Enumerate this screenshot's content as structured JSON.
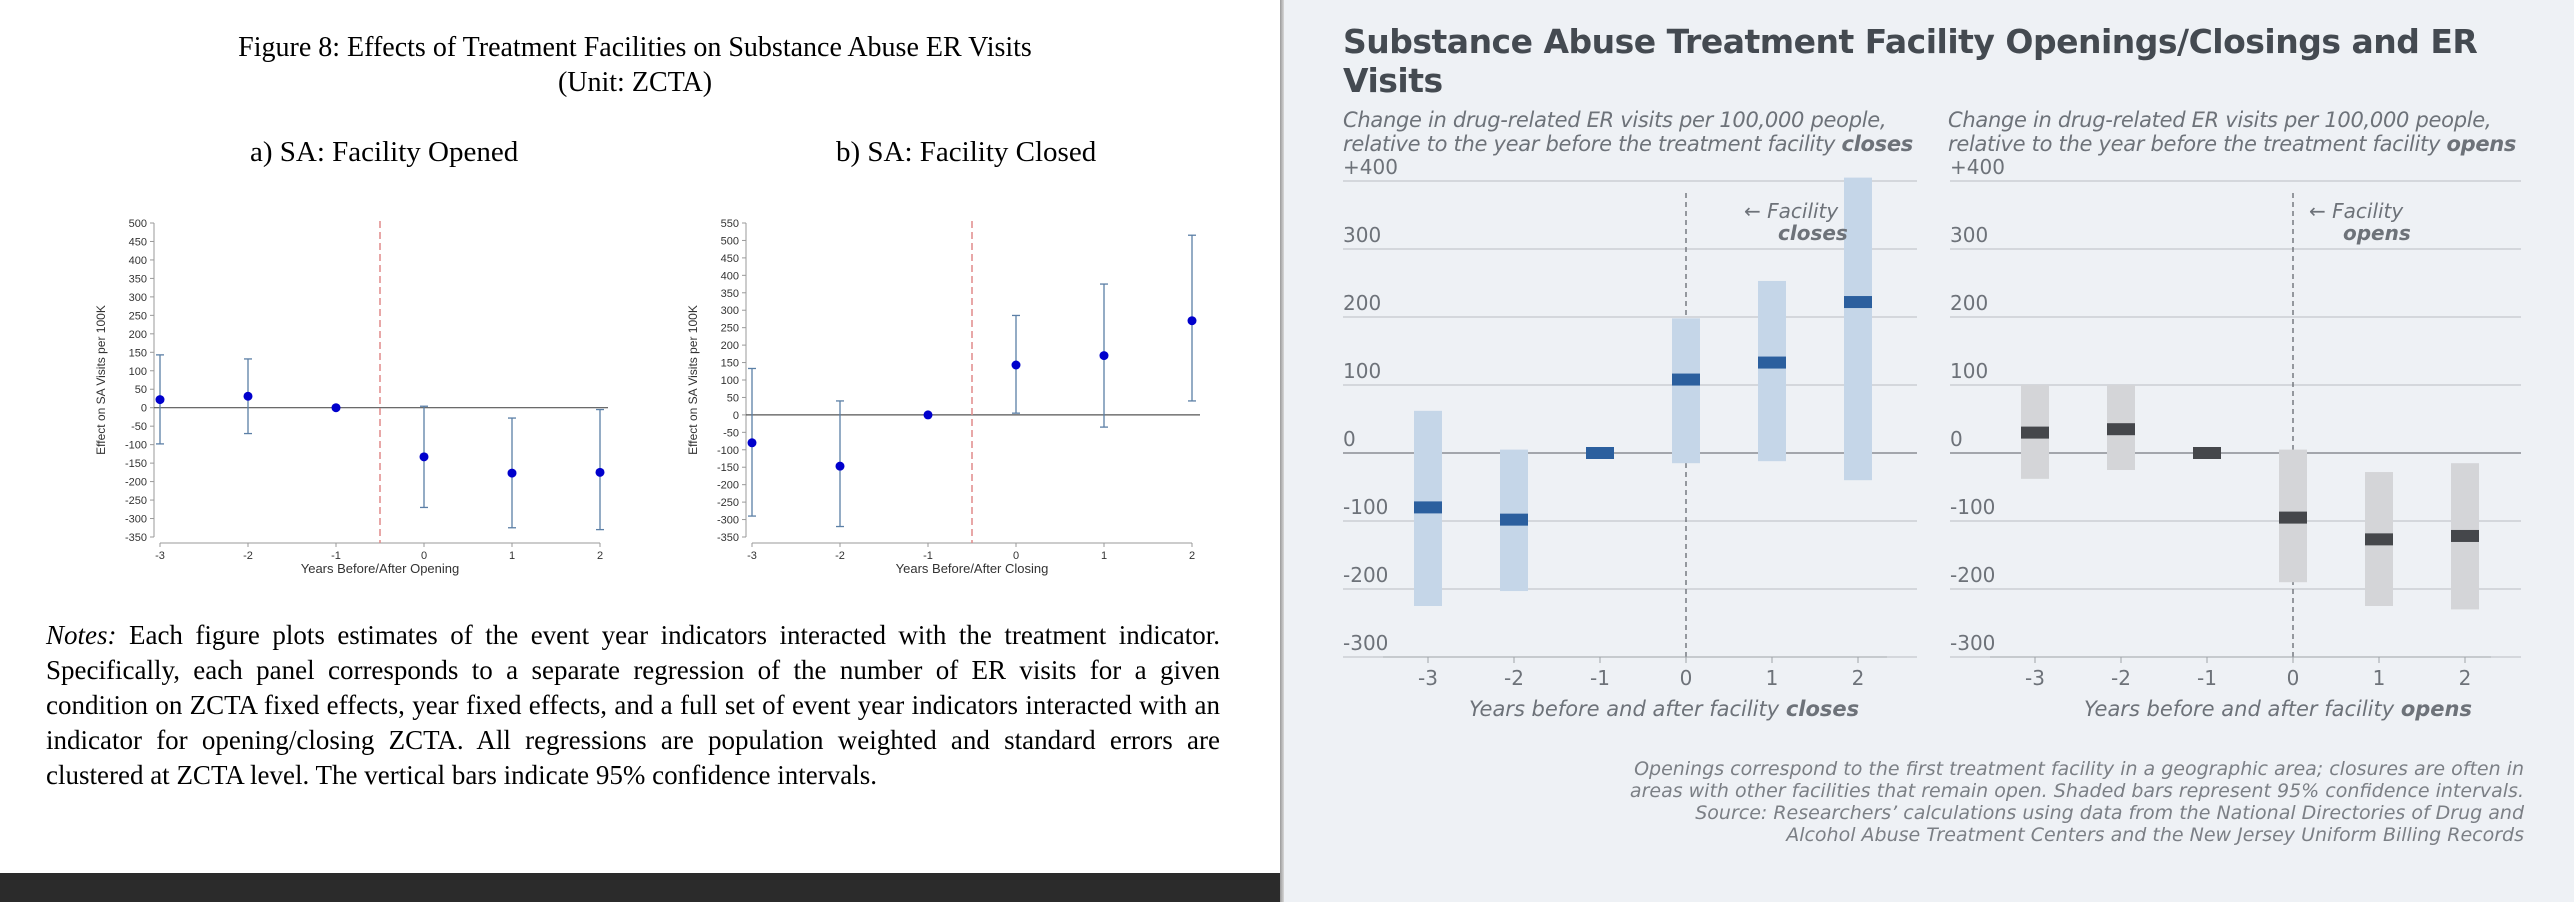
{
  "left": {
    "figure_title": "Figure 8: Effects of Treatment Facilities on Substance Abuse ER Visits",
    "figure_unit": "(Unit: ZCTA)",
    "notes_label": "Notes:",
    "notes_text": " Each figure plots estimates of the event year indicators interacted with the treatment indicator. Specifically, each panel corresponds to a separate regression of the number of ER visits for a given condition on ZCTA fixed effects, year fixed effects, and a full set of event year indicators interacted with an indicator for opening/closing ZCTA. All regressions are population weighted and standard errors are clustered at ZCTA level.  The vertical bars indicate 95% confidence intervals."
  },
  "right": {
    "title": "Substance Abuse Treatment Facility Openings/Closings and ER Visits",
    "sub_prefix": "Change in drug-related ER visits per 100,000 people, relative to the year before the treatment facility ",
    "sub_closes": "closes",
    "sub_opens": "opens",
    "ann_facility": "Facility",
    "ann_closes": "closes",
    "ann_opens": "opens",
    "arrow": "←",
    "xlabel_prefix": "Years before and after facility ",
    "xlabel_closes": "closes",
    "xlabel_opens": "opens",
    "footnote_1": "Openings correspond to the first treatment facility in a geographic area; closures are often in",
    "footnote_2": "areas with other facilities that remain open. Shaded bars represent 95% confidence intervals.",
    "footnote_3": "Source: Researchers’ calculations using data from the National Directories of Drug and",
    "footnote_4": "Alcohol Abuse Treatment Centers and the New Jersey Uniform Billing Records"
  },
  "chart_data": [
    {
      "type": "scatter",
      "title": "a)   SA: Facility Opened",
      "xlabel": "Years Before/After Opening",
      "ylabel": "Effect on SA Visits per 100K",
      "x": [
        -3,
        -2,
        -1,
        0,
        1,
        2
      ],
      "y": [
        22,
        31,
        0,
        -133,
        -177,
        -175
      ],
      "ci_low": [
        -98,
        -70,
        0,
        -270,
        -325,
        -330
      ],
      "ci_high": [
        143,
        132,
        0,
        4,
        -28,
        -5
      ],
      "x_ticks": [
        "-3",
        "-2",
        "-1",
        "0",
        "1",
        "2"
      ],
      "y_ticks": [
        500,
        450,
        400,
        350,
        300,
        250,
        200,
        150,
        100,
        50,
        0,
        -50,
        -100,
        -150,
        -200,
        -250,
        -300,
        -350
      ],
      "ylim": [
        -350,
        500
      ],
      "event_line_x": -0.5,
      "colors": {
        "point": "#0000cc",
        "whisker": "#5b7fa6",
        "event_line": "#e08a8a"
      }
    },
    {
      "type": "scatter",
      "title": "b) SA: Facility Closed",
      "xlabel": "Years Before/After Closing",
      "ylabel": "Effect on SA Visits per 100K",
      "x": [
        -3,
        -2,
        -1,
        0,
        1,
        2
      ],
      "y": [
        -80,
        -147,
        0,
        143,
        170,
        270
      ],
      "ci_low": [
        -290,
        -320,
        0,
        5,
        -35,
        40
      ],
      "ci_high": [
        133,
        40,
        0,
        285,
        375,
        515
      ],
      "x_ticks": [
        "-3",
        "-2",
        "-1",
        "0",
        "1",
        "2"
      ],
      "y_ticks": [
        550,
        500,
        450,
        400,
        350,
        300,
        250,
        200,
        150,
        100,
        50,
        0,
        -50,
        -100,
        -150,
        -200,
        -250,
        -300,
        -350
      ],
      "ylim": [
        -350,
        550
      ],
      "event_line_x": -0.5,
      "colors": {
        "point": "#0000cc",
        "whisker": "#5b7fa6",
        "event_line": "#e08a8a"
      }
    },
    {
      "type": "bar",
      "title": "",
      "x": [
        -3,
        -2,
        -1,
        0,
        1,
        2
      ],
      "y": [
        -80,
        -98,
        0,
        108,
        133,
        222
      ],
      "ci_low": [
        -225,
        -203,
        0,
        -15,
        -12,
        -40
      ],
      "ci_high": [
        62,
        5,
        0,
        198,
        253,
        405
      ],
      "x_ticks": [
        "-3",
        "-2",
        "-1",
        "0",
        "1",
        "2"
      ],
      "y_ticks": [
        "+400",
        "300",
        "200",
        "100",
        "0",
        "-100",
        "-200",
        "-300"
      ],
      "ylim": [
        -300,
        400
      ],
      "event_line_x": 0,
      "colors": {
        "estimate": "#2b5f9e",
        "interval": "#c5d6e8"
      }
    },
    {
      "type": "bar",
      "title": "",
      "x": [
        -3,
        -2,
        -1,
        0,
        1,
        2
      ],
      "y": [
        30,
        35,
        0,
        -95,
        -127,
        -122
      ],
      "ci_low": [
        -38,
        -25,
        0,
        -190,
        -225,
        -230
      ],
      "ci_high": [
        100,
        100,
        0,
        5,
        -28,
        -15
      ],
      "x_ticks": [
        "-3",
        "-2",
        "-1",
        "0",
        "1",
        "2"
      ],
      "y_ticks": [
        "+400",
        "300",
        "200",
        "100",
        "0",
        "-100",
        "-200",
        "-300"
      ],
      "ylim": [
        -300,
        400
      ],
      "event_line_x": 0,
      "colors": {
        "estimate": "#45474b",
        "interval": "#d4d5d8"
      }
    }
  ]
}
